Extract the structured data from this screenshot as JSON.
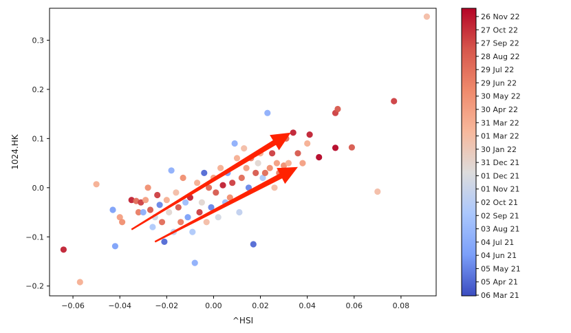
{
  "chart_data": {
    "type": "scatter",
    "title": "",
    "xlabel": "^HSI",
    "ylabel": "1024.HK",
    "xlim": [
      -0.07,
      0.095
    ],
    "ylim": [
      -0.22,
      0.365
    ],
    "x_ticks": [
      -0.06,
      -0.04,
      -0.02,
      0.0,
      0.02,
      0.04,
      0.06,
      0.08
    ],
    "x_tick_labels": [
      "−0.06",
      "−0.04",
      "−0.02",
      "0.00",
      "0.02",
      "0.04",
      "0.06",
      "0.08"
    ],
    "y_ticks": [
      -0.2,
      -0.1,
      0.0,
      0.1,
      0.2,
      0.3
    ],
    "y_tick_labels": [
      "−0.2",
      "−0.1",
      "0.0",
      "0.1",
      "0.2",
      "0.3"
    ],
    "grid": false,
    "colormap": "coolwarm",
    "colorbar": {
      "labels": [
        "26 Nov 22",
        "27 Oct 22",
        "27 Sep 22",
        "28 Aug 22",
        "29 Jul 22",
        "29 Jun 22",
        "30 May 22",
        "30 Apr 22",
        "31 Mar 22",
        "01 Mar 22",
        "30 Jan 22",
        "31 Dec 21",
        "01 Dec 21",
        "01 Nov 21",
        "02 Oct 21",
        "02 Sep 21",
        "03 Aug 21",
        "04 Jul 21",
        "04 Jun 21",
        "05 May 21",
        "05 Apr 21",
        "06 Mar 21"
      ],
      "colors": [
        "#b40426",
        "#d6574c",
        "#ef8a6c",
        "#f7b89c",
        "#dddcdc",
        "#aac7fd",
        "#7b9ff9",
        "#3b4cc0"
      ]
    },
    "points": [
      {
        "x": 0.091,
        "y": 0.348,
        "t": 0.55
      },
      {
        "x": -0.064,
        "y": -0.126,
        "t": 0.95
      },
      {
        "x": -0.057,
        "y": -0.192,
        "t": 0.6
      },
      {
        "x": -0.05,
        "y": 0.007,
        "t": 0.6
      },
      {
        "x": -0.043,
        "y": -0.045,
        "t": 0.15
      },
      {
        "x": -0.042,
        "y": -0.119,
        "t": 0.15
      },
      {
        "x": -0.04,
        "y": -0.06,
        "t": 0.65
      },
      {
        "x": -0.039,
        "y": -0.07,
        "t": 0.7
      },
      {
        "x": -0.035,
        "y": -0.025,
        "t": 0.95
      },
      {
        "x": -0.033,
        "y": -0.027,
        "t": 0.8
      },
      {
        "x": -0.032,
        "y": -0.05,
        "t": 0.75
      },
      {
        "x": -0.031,
        "y": -0.03,
        "t": 0.9
      },
      {
        "x": -0.03,
        "y": -0.05,
        "t": 0.2
      },
      {
        "x": -0.028,
        "y": 0.0,
        "t": 0.7
      },
      {
        "x": -0.029,
        "y": -0.025,
        "t": 0.65
      },
      {
        "x": -0.027,
        "y": -0.045,
        "t": 0.85
      },
      {
        "x": -0.026,
        "y": -0.08,
        "t": 0.3
      },
      {
        "x": -0.025,
        "y": -0.06,
        "t": 0.4
      },
      {
        "x": -0.024,
        "y": -0.015,
        "t": 0.9
      },
      {
        "x": -0.023,
        "y": -0.035,
        "t": 0.1
      },
      {
        "x": -0.022,
        "y": -0.07,
        "t": 0.8
      },
      {
        "x": -0.021,
        "y": -0.11,
        "t": 0.05
      },
      {
        "x": -0.02,
        "y": -0.025,
        "t": 0.6
      },
      {
        "x": -0.019,
        "y": -0.05,
        "t": 0.45
      },
      {
        "x": -0.018,
        "y": 0.035,
        "t": 0.2
      },
      {
        "x": -0.017,
        "y": -0.09,
        "t": 0.35
      },
      {
        "x": -0.016,
        "y": -0.01,
        "t": 0.55
      },
      {
        "x": -0.015,
        "y": -0.04,
        "t": 0.85
      },
      {
        "x": -0.014,
        "y": -0.07,
        "t": 0.75
      },
      {
        "x": -0.013,
        "y": 0.02,
        "t": 0.7
      },
      {
        "x": -0.012,
        "y": -0.03,
        "t": 0.25
      },
      {
        "x": -0.011,
        "y": -0.06,
        "t": 0.15
      },
      {
        "x": -0.01,
        "y": -0.02,
        "t": 0.95
      },
      {
        "x": -0.009,
        "y": -0.09,
        "t": 0.3
      },
      {
        "x": -0.008,
        "y": -0.153,
        "t": 0.2
      },
      {
        "x": -0.007,
        "y": 0.01,
        "t": 0.6
      },
      {
        "x": -0.006,
        "y": -0.05,
        "t": 0.9
      },
      {
        "x": -0.005,
        "y": -0.03,
        "t": 0.45
      },
      {
        "x": -0.004,
        "y": 0.03,
        "t": 0.05
      },
      {
        "x": -0.003,
        "y": -0.07,
        "t": 0.55
      },
      {
        "x": -0.002,
        "y": 0.0,
        "t": 0.8
      },
      {
        "x": -0.001,
        "y": -0.04,
        "t": 0.1
      },
      {
        "x": 0.0,
        "y": 0.02,
        "t": 0.65
      },
      {
        "x": 0.001,
        "y": -0.01,
        "t": 0.85
      },
      {
        "x": 0.002,
        "y": -0.06,
        "t": 0.4
      },
      {
        "x": 0.003,
        "y": 0.04,
        "t": 0.6
      },
      {
        "x": 0.004,
        "y": 0.005,
        "t": 0.95
      },
      {
        "x": 0.005,
        "y": -0.03,
        "t": 0.25
      },
      {
        "x": 0.006,
        "y": 0.03,
        "t": 0.15
      },
      {
        "x": 0.007,
        "y": -0.02,
        "t": 0.7
      },
      {
        "x": 0.008,
        "y": 0.01,
        "t": 0.9
      },
      {
        "x": 0.009,
        "y": 0.09,
        "t": 0.2
      },
      {
        "x": 0.01,
        "y": 0.06,
        "t": 0.6
      },
      {
        "x": 0.011,
        "y": -0.05,
        "t": 0.35
      },
      {
        "x": 0.012,
        "y": 0.02,
        "t": 0.8
      },
      {
        "x": 0.013,
        "y": 0.08,
        "t": 0.55
      },
      {
        "x": 0.014,
        "y": 0.04,
        "t": 0.65
      },
      {
        "x": 0.015,
        "y": 0.0,
        "t": 0.1
      },
      {
        "x": 0.016,
        "y": 0.06,
        "t": 0.75
      },
      {
        "x": 0.017,
        "y": -0.115,
        "t": 0.05
      },
      {
        "x": 0.018,
        "y": 0.03,
        "t": 0.85
      },
      {
        "x": 0.019,
        "y": 0.05,
        "t": 0.45
      },
      {
        "x": 0.02,
        "y": 0.07,
        "t": 0.6
      },
      {
        "x": 0.021,
        "y": 0.02,
        "t": 0.3
      },
      {
        "x": 0.022,
        "y": 0.03,
        "t": 0.8
      },
      {
        "x": 0.023,
        "y": 0.152,
        "t": 0.2
      },
      {
        "x": 0.024,
        "y": 0.04,
        "t": 0.7
      },
      {
        "x": 0.025,
        "y": 0.07,
        "t": 0.9
      },
      {
        "x": 0.026,
        "y": 0.0,
        "t": 0.55
      },
      {
        "x": 0.027,
        "y": 0.05,
        "t": 0.65
      },
      {
        "x": 0.028,
        "y": 0.03,
        "t": 0.75
      },
      {
        "x": 0.03,
        "y": 0.045,
        "t": 0.7
      },
      {
        "x": 0.031,
        "y": 0.1,
        "t": 0.8
      },
      {
        "x": 0.032,
        "y": 0.05,
        "t": 0.6
      },
      {
        "x": 0.034,
        "y": 0.112,
        "t": 0.95
      },
      {
        "x": 0.036,
        "y": 0.07,
        "t": 0.85
      },
      {
        "x": 0.038,
        "y": 0.05,
        "t": 0.65
      },
      {
        "x": 0.04,
        "y": 0.09,
        "t": 0.6
      },
      {
        "x": 0.041,
        "y": 0.108,
        "t": 0.95
      },
      {
        "x": 0.045,
        "y": 0.062,
        "t": 1.0
      },
      {
        "x": 0.052,
        "y": 0.152,
        "t": 0.9
      },
      {
        "x": 0.053,
        "y": 0.16,
        "t": 0.85
      },
      {
        "x": 0.052,
        "y": 0.081,
        "t": 1.0
      },
      {
        "x": 0.059,
        "y": 0.082,
        "t": 0.85
      },
      {
        "x": 0.07,
        "y": -0.008,
        "t": 0.55
      },
      {
        "x": 0.077,
        "y": 0.176,
        "t": 0.9
      }
    ],
    "annotations": [
      {
        "type": "arrow",
        "color": "#ff2200",
        "from": [
          -0.035,
          -0.085
        ],
        "to": [
          0.033,
          0.112
        ]
      },
      {
        "type": "arrow",
        "color": "#ff2200",
        "from": [
          -0.025,
          -0.11
        ],
        "to": [
          0.036,
          0.042
        ]
      }
    ]
  }
}
